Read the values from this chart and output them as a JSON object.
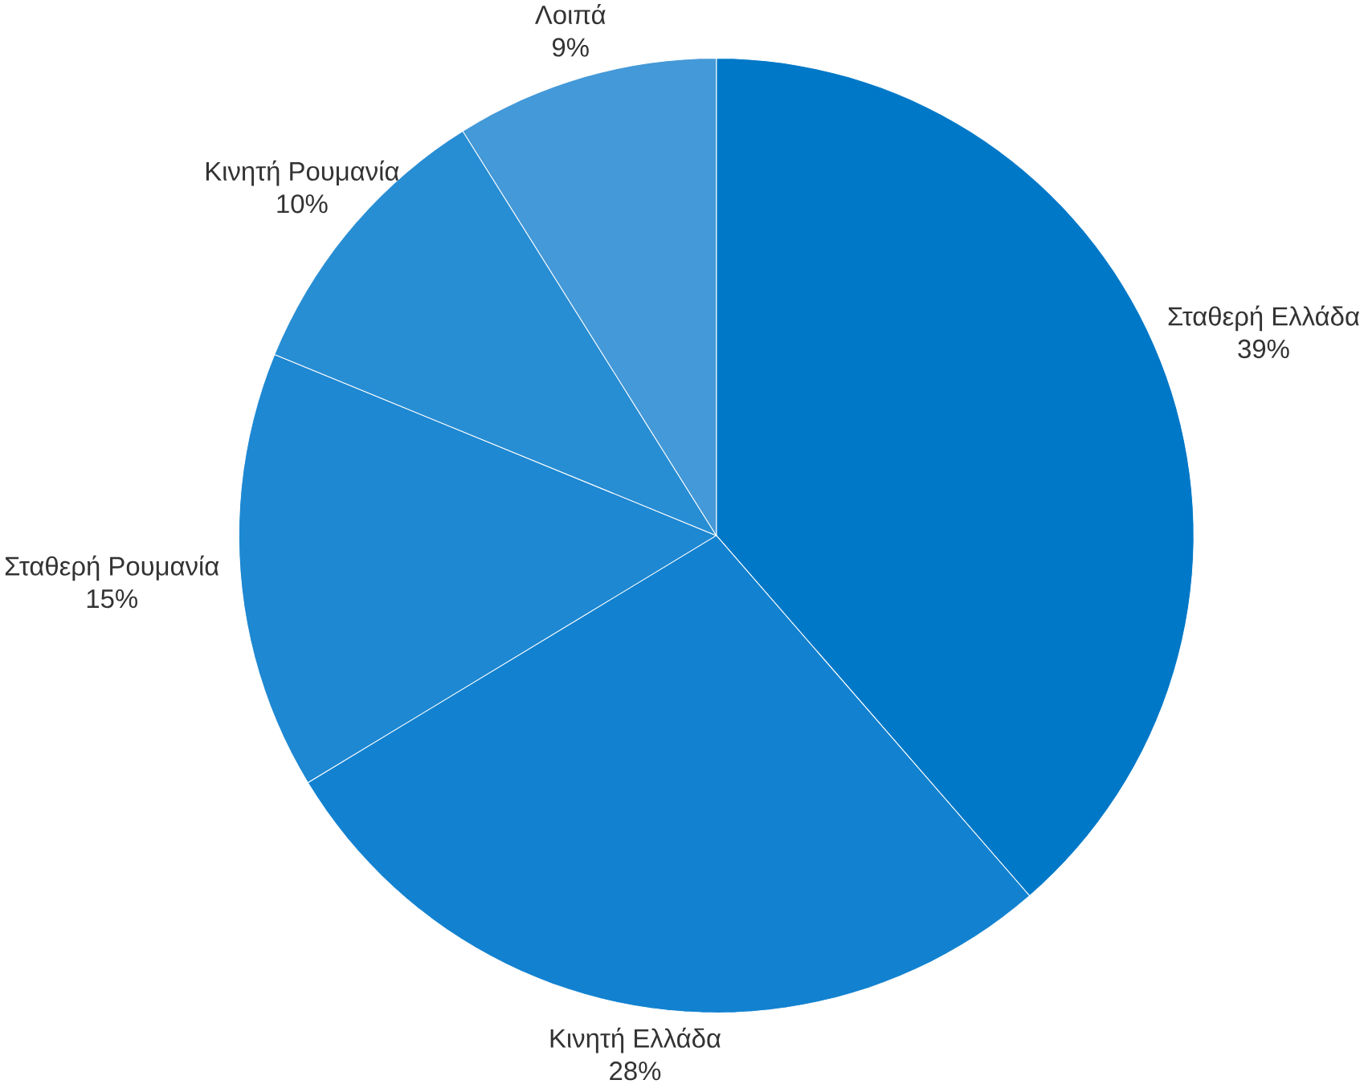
{
  "chart_data": {
    "type": "pie",
    "categories": [
      "Σταθερή Ελλάδα",
      "Κινητή Ελλάδα",
      "Σταθερή Ρουμανία",
      "Κινητή Ρουμανία",
      "Λοιπά"
    ],
    "values": [
      39,
      28,
      15,
      10,
      9
    ],
    "value_labels": [
      "39%",
      "28%",
      "15%",
      "10%",
      "9%"
    ],
    "colors": [
      "#0078C8",
      "#1282D0",
      "#1E88D2",
      "#288ED4",
      "#4499D8"
    ]
  }
}
